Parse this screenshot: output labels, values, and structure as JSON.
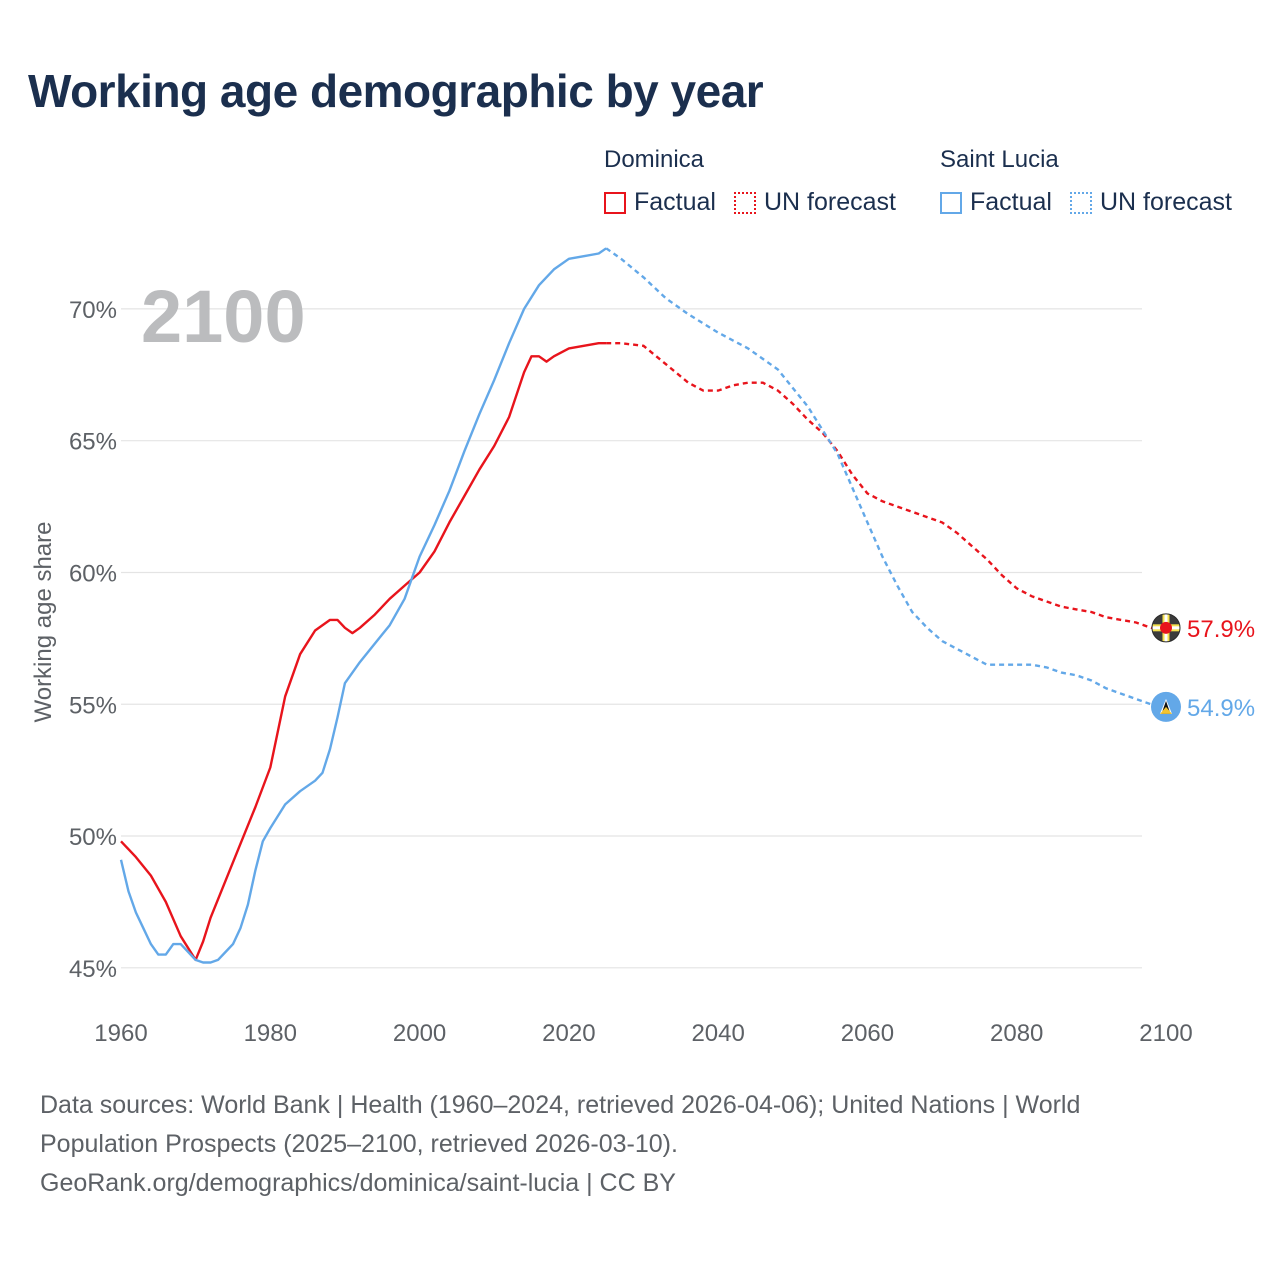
{
  "title": "Working age demographic by year",
  "legend": {
    "groups": [
      {
        "name": "Dominica",
        "color": "#e8141c",
        "factual_label": "Factual",
        "forecast_label": "UN forecast"
      },
      {
        "name": "Saint Lucia",
        "color": "#63a8e8",
        "factual_label": "Factual",
        "forecast_label": "UN forecast"
      }
    ]
  },
  "chart_data": {
    "type": "line",
    "title": "Working age demographic by year",
    "year_watermark": "2100",
    "xlabel": "",
    "ylabel": "Working age share",
    "xlim": [
      1960,
      2100
    ],
    "ylim": [
      44.5,
      72.5
    ],
    "x_ticks": [
      1960,
      1980,
      2000,
      2020,
      2040,
      2060,
      2080,
      2100
    ],
    "y_ticks": [
      45,
      50,
      55,
      60,
      65,
      70
    ],
    "y_tick_labels": [
      "45%",
      "50%",
      "55%",
      "60%",
      "65%",
      "70%"
    ],
    "forecast_start_year": 2025,
    "series": [
      {
        "name": "Dominica",
        "color": "#e8141c",
        "end_label": "57.9%",
        "flag_icon": "dominica-flag-icon",
        "points": [
          [
            1960,
            49.8
          ],
          [
            1962,
            49.2
          ],
          [
            1964,
            48.5
          ],
          [
            1966,
            47.5
          ],
          [
            1968,
            46.2
          ],
          [
            1970,
            45.3
          ],
          [
            1971,
            46.0
          ],
          [
            1972,
            46.9
          ],
          [
            1974,
            48.3
          ],
          [
            1976,
            49.7
          ],
          [
            1978,
            51.1
          ],
          [
            1980,
            52.6
          ],
          [
            1982,
            55.3
          ],
          [
            1984,
            56.9
          ],
          [
            1986,
            57.8
          ],
          [
            1988,
            58.2
          ],
          [
            1989,
            58.2
          ],
          [
            1990,
            57.9
          ],
          [
            1991,
            57.7
          ],
          [
            1992,
            57.9
          ],
          [
            1994,
            58.4
          ],
          [
            1996,
            59.0
          ],
          [
            1998,
            59.5
          ],
          [
            2000,
            60.0
          ],
          [
            2002,
            60.8
          ],
          [
            2004,
            61.9
          ],
          [
            2006,
            62.9
          ],
          [
            2008,
            63.9
          ],
          [
            2010,
            64.8
          ],
          [
            2012,
            65.9
          ],
          [
            2014,
            67.6
          ],
          [
            2015,
            68.2
          ],
          [
            2016,
            68.2
          ],
          [
            2017,
            68.0
          ],
          [
            2018,
            68.2
          ],
          [
            2020,
            68.5
          ],
          [
            2022,
            68.6
          ],
          [
            2024,
            68.7
          ],
          [
            2025,
            68.7
          ],
          [
            2027,
            68.7
          ],
          [
            2030,
            68.6
          ],
          [
            2033,
            67.9
          ],
          [
            2036,
            67.2
          ],
          [
            2038,
            66.9
          ],
          [
            2040,
            66.9
          ],
          [
            2042,
            67.1
          ],
          [
            2044,
            67.2
          ],
          [
            2046,
            67.2
          ],
          [
            2048,
            66.9
          ],
          [
            2050,
            66.4
          ],
          [
            2052,
            65.8
          ],
          [
            2054,
            65.3
          ],
          [
            2056,
            64.6
          ],
          [
            2058,
            63.7
          ],
          [
            2060,
            63.0
          ],
          [
            2062,
            62.7
          ],
          [
            2064,
            62.5
          ],
          [
            2066,
            62.3
          ],
          [
            2068,
            62.1
          ],
          [
            2070,
            61.9
          ],
          [
            2072,
            61.5
          ],
          [
            2074,
            61.0
          ],
          [
            2076,
            60.5
          ],
          [
            2078,
            59.9
          ],
          [
            2080,
            59.4
          ],
          [
            2082,
            59.1
          ],
          [
            2084,
            58.9
          ],
          [
            2086,
            58.7
          ],
          [
            2088,
            58.6
          ],
          [
            2090,
            58.5
          ],
          [
            2092,
            58.3
          ],
          [
            2094,
            58.2
          ],
          [
            2096,
            58.1
          ],
          [
            2098,
            57.9
          ],
          [
            2100,
            57.9
          ]
        ]
      },
      {
        "name": "Saint Lucia",
        "color": "#63a8e8",
        "end_label": "54.9%",
        "flag_icon": "saint-lucia-flag-icon",
        "points": [
          [
            1960,
            49.1
          ],
          [
            1961,
            47.9
          ],
          [
            1962,
            47.1
          ],
          [
            1963,
            46.5
          ],
          [
            1964,
            45.9
          ],
          [
            1965,
            45.5
          ],
          [
            1966,
            45.5
          ],
          [
            1967,
            45.9
          ],
          [
            1968,
            45.9
          ],
          [
            1969,
            45.6
          ],
          [
            1970,
            45.3
          ],
          [
            1971,
            45.2
          ],
          [
            1972,
            45.2
          ],
          [
            1973,
            45.3
          ],
          [
            1974,
            45.6
          ],
          [
            1975,
            45.9
          ],
          [
            1976,
            46.5
          ],
          [
            1977,
            47.4
          ],
          [
            1978,
            48.7
          ],
          [
            1979,
            49.8
          ],
          [
            1980,
            50.3
          ],
          [
            1982,
            51.2
          ],
          [
            1984,
            51.7
          ],
          [
            1986,
            52.1
          ],
          [
            1987,
            52.4
          ],
          [
            1988,
            53.3
          ],
          [
            1989,
            54.5
          ],
          [
            1990,
            55.8
          ],
          [
            1992,
            56.6
          ],
          [
            1994,
            57.3
          ],
          [
            1996,
            58.0
          ],
          [
            1998,
            59.0
          ],
          [
            2000,
            60.6
          ],
          [
            2002,
            61.8
          ],
          [
            2004,
            63.1
          ],
          [
            2006,
            64.6
          ],
          [
            2008,
            66.0
          ],
          [
            2010,
            67.3
          ],
          [
            2012,
            68.7
          ],
          [
            2014,
            70.0
          ],
          [
            2016,
            70.9
          ],
          [
            2018,
            71.5
          ],
          [
            2020,
            71.9
          ],
          [
            2022,
            72.0
          ],
          [
            2024,
            72.1
          ],
          [
            2025,
            72.3
          ],
          [
            2027,
            71.9
          ],
          [
            2030,
            71.2
          ],
          [
            2033,
            70.4
          ],
          [
            2036,
            69.8
          ],
          [
            2040,
            69.1
          ],
          [
            2044,
            68.5
          ],
          [
            2048,
            67.7
          ],
          [
            2050,
            67.0
          ],
          [
            2052,
            66.3
          ],
          [
            2054,
            65.4
          ],
          [
            2056,
            64.5
          ],
          [
            2058,
            63.2
          ],
          [
            2060,
            61.9
          ],
          [
            2062,
            60.6
          ],
          [
            2064,
            59.5
          ],
          [
            2066,
            58.5
          ],
          [
            2068,
            57.9
          ],
          [
            2070,
            57.4
          ],
          [
            2072,
            57.1
          ],
          [
            2074,
            56.8
          ],
          [
            2076,
            56.5
          ],
          [
            2078,
            56.5
          ],
          [
            2080,
            56.5
          ],
          [
            2082,
            56.5
          ],
          [
            2084,
            56.4
          ],
          [
            2086,
            56.2
          ],
          [
            2088,
            56.1
          ],
          [
            2090,
            55.9
          ],
          [
            2092,
            55.6
          ],
          [
            2094,
            55.4
          ],
          [
            2096,
            55.2
          ],
          [
            2098,
            55.0
          ],
          [
            2100,
            54.9
          ]
        ]
      }
    ]
  },
  "sources": {
    "line1": "Data sources: World Bank | Health (1960–2024, retrieved 2026-04-06); United Nations | World",
    "line2": "Population Prospects (2025–2100, retrieved 2026-03-10).",
    "line3": "GeoRank.org/demographics/dominica/saint-lucia | CC BY"
  }
}
